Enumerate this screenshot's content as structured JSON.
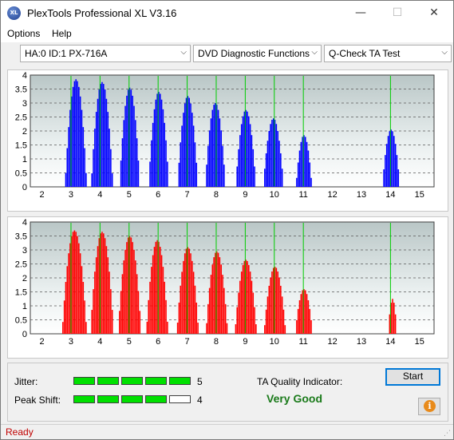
{
  "window": {
    "title": "PlexTools Professional XL V3.16",
    "icon_text": "XL"
  },
  "title_buttons": {
    "minimize": "—",
    "maximize": "☐",
    "close": "✕"
  },
  "menu": {
    "items": [
      "Options",
      "Help"
    ]
  },
  "toolbar": {
    "drive": "HA:0 ID:1  PX-716A",
    "function": "DVD Diagnostic Functions",
    "test": "Q-Check TA Test",
    "arrow": "⌵"
  },
  "chart_data": [
    {
      "type": "bar",
      "series_color": "#0000ff",
      "x_ticks": [
        2,
        3,
        4,
        5,
        6,
        7,
        8,
        9,
        10,
        11,
        12,
        13,
        14,
        15
      ],
      "y_ticks": [
        "4",
        "3.5",
        "3",
        "2.5",
        "2",
        "1.5",
        "1",
        "0.5",
        "0"
      ],
      "xlim": [
        1.6,
        15.5
      ],
      "ylim": [
        0,
        4
      ],
      "marker_lines": [
        3,
        4,
        5,
        6,
        7,
        8,
        9,
        10,
        11,
        14
      ],
      "marker_color": "#00cc00",
      "peaks": [
        {
          "center": 3.15,
          "height": 3.85,
          "width": 0.75
        },
        {
          "center": 4.05,
          "height": 3.75,
          "width": 0.75
        },
        {
          "center": 5.0,
          "height": 3.55,
          "width": 0.7
        },
        {
          "center": 6.0,
          "height": 3.4,
          "width": 0.7
        },
        {
          "center": 7.0,
          "height": 3.25,
          "width": 0.7
        },
        {
          "center": 7.95,
          "height": 3.0,
          "width": 0.7
        },
        {
          "center": 9.0,
          "height": 2.75,
          "width": 0.7
        },
        {
          "center": 9.95,
          "height": 2.45,
          "width": 0.7
        },
        {
          "center": 11.0,
          "height": 1.85,
          "width": 0.55
        },
        {
          "center": 14.0,
          "height": 2.05,
          "width": 0.6
        }
      ]
    },
    {
      "type": "bar",
      "series_color": "#ff0000",
      "x_ticks": [
        2,
        3,
        4,
        5,
        6,
        7,
        8,
        9,
        10,
        11,
        12,
        13,
        14,
        15
      ],
      "y_ticks": [
        "4",
        "3.5",
        "3",
        "2.5",
        "2",
        "1.5",
        "1",
        "0.5",
        "0"
      ],
      "xlim": [
        1.6,
        15.5
      ],
      "ylim": [
        0,
        4
      ],
      "marker_lines": [
        3,
        4,
        5,
        6,
        7,
        8,
        9,
        10,
        11,
        14
      ],
      "marker_color": "#00cc00",
      "peaks": [
        {
          "center": 3.1,
          "height": 3.7,
          "width": 0.85
        },
        {
          "center": 4.05,
          "height": 3.65,
          "width": 0.8
        },
        {
          "center": 5.0,
          "height": 3.5,
          "width": 0.8
        },
        {
          "center": 5.95,
          "height": 3.35,
          "width": 0.75
        },
        {
          "center": 7.0,
          "height": 3.1,
          "width": 0.75
        },
        {
          "center": 8.0,
          "height": 2.95,
          "width": 0.75
        },
        {
          "center": 9.0,
          "height": 2.65,
          "width": 0.75
        },
        {
          "center": 10.0,
          "height": 2.4,
          "width": 0.75
        },
        {
          "center": 11.0,
          "height": 1.6,
          "width": 0.6
        },
        {
          "center": 14.05,
          "height": 1.25,
          "width": 0.3
        }
      ]
    }
  ],
  "metrics": {
    "jitter_label": "Jitter:",
    "jitter_value": "5",
    "jitter_level": 5,
    "peak_shift_label": "Peak Shift:",
    "peak_shift_value": "4",
    "peak_shift_level": 4,
    "segments_total": 5,
    "seg_on_color": "#00e000",
    "seg_off_color": "#ffffff"
  },
  "quality": {
    "label": "TA Quality Indicator:",
    "value": "Very Good",
    "color": "#1a7a1a"
  },
  "buttons": {
    "start": "Start",
    "info": "i"
  },
  "status": {
    "text": "Ready"
  }
}
